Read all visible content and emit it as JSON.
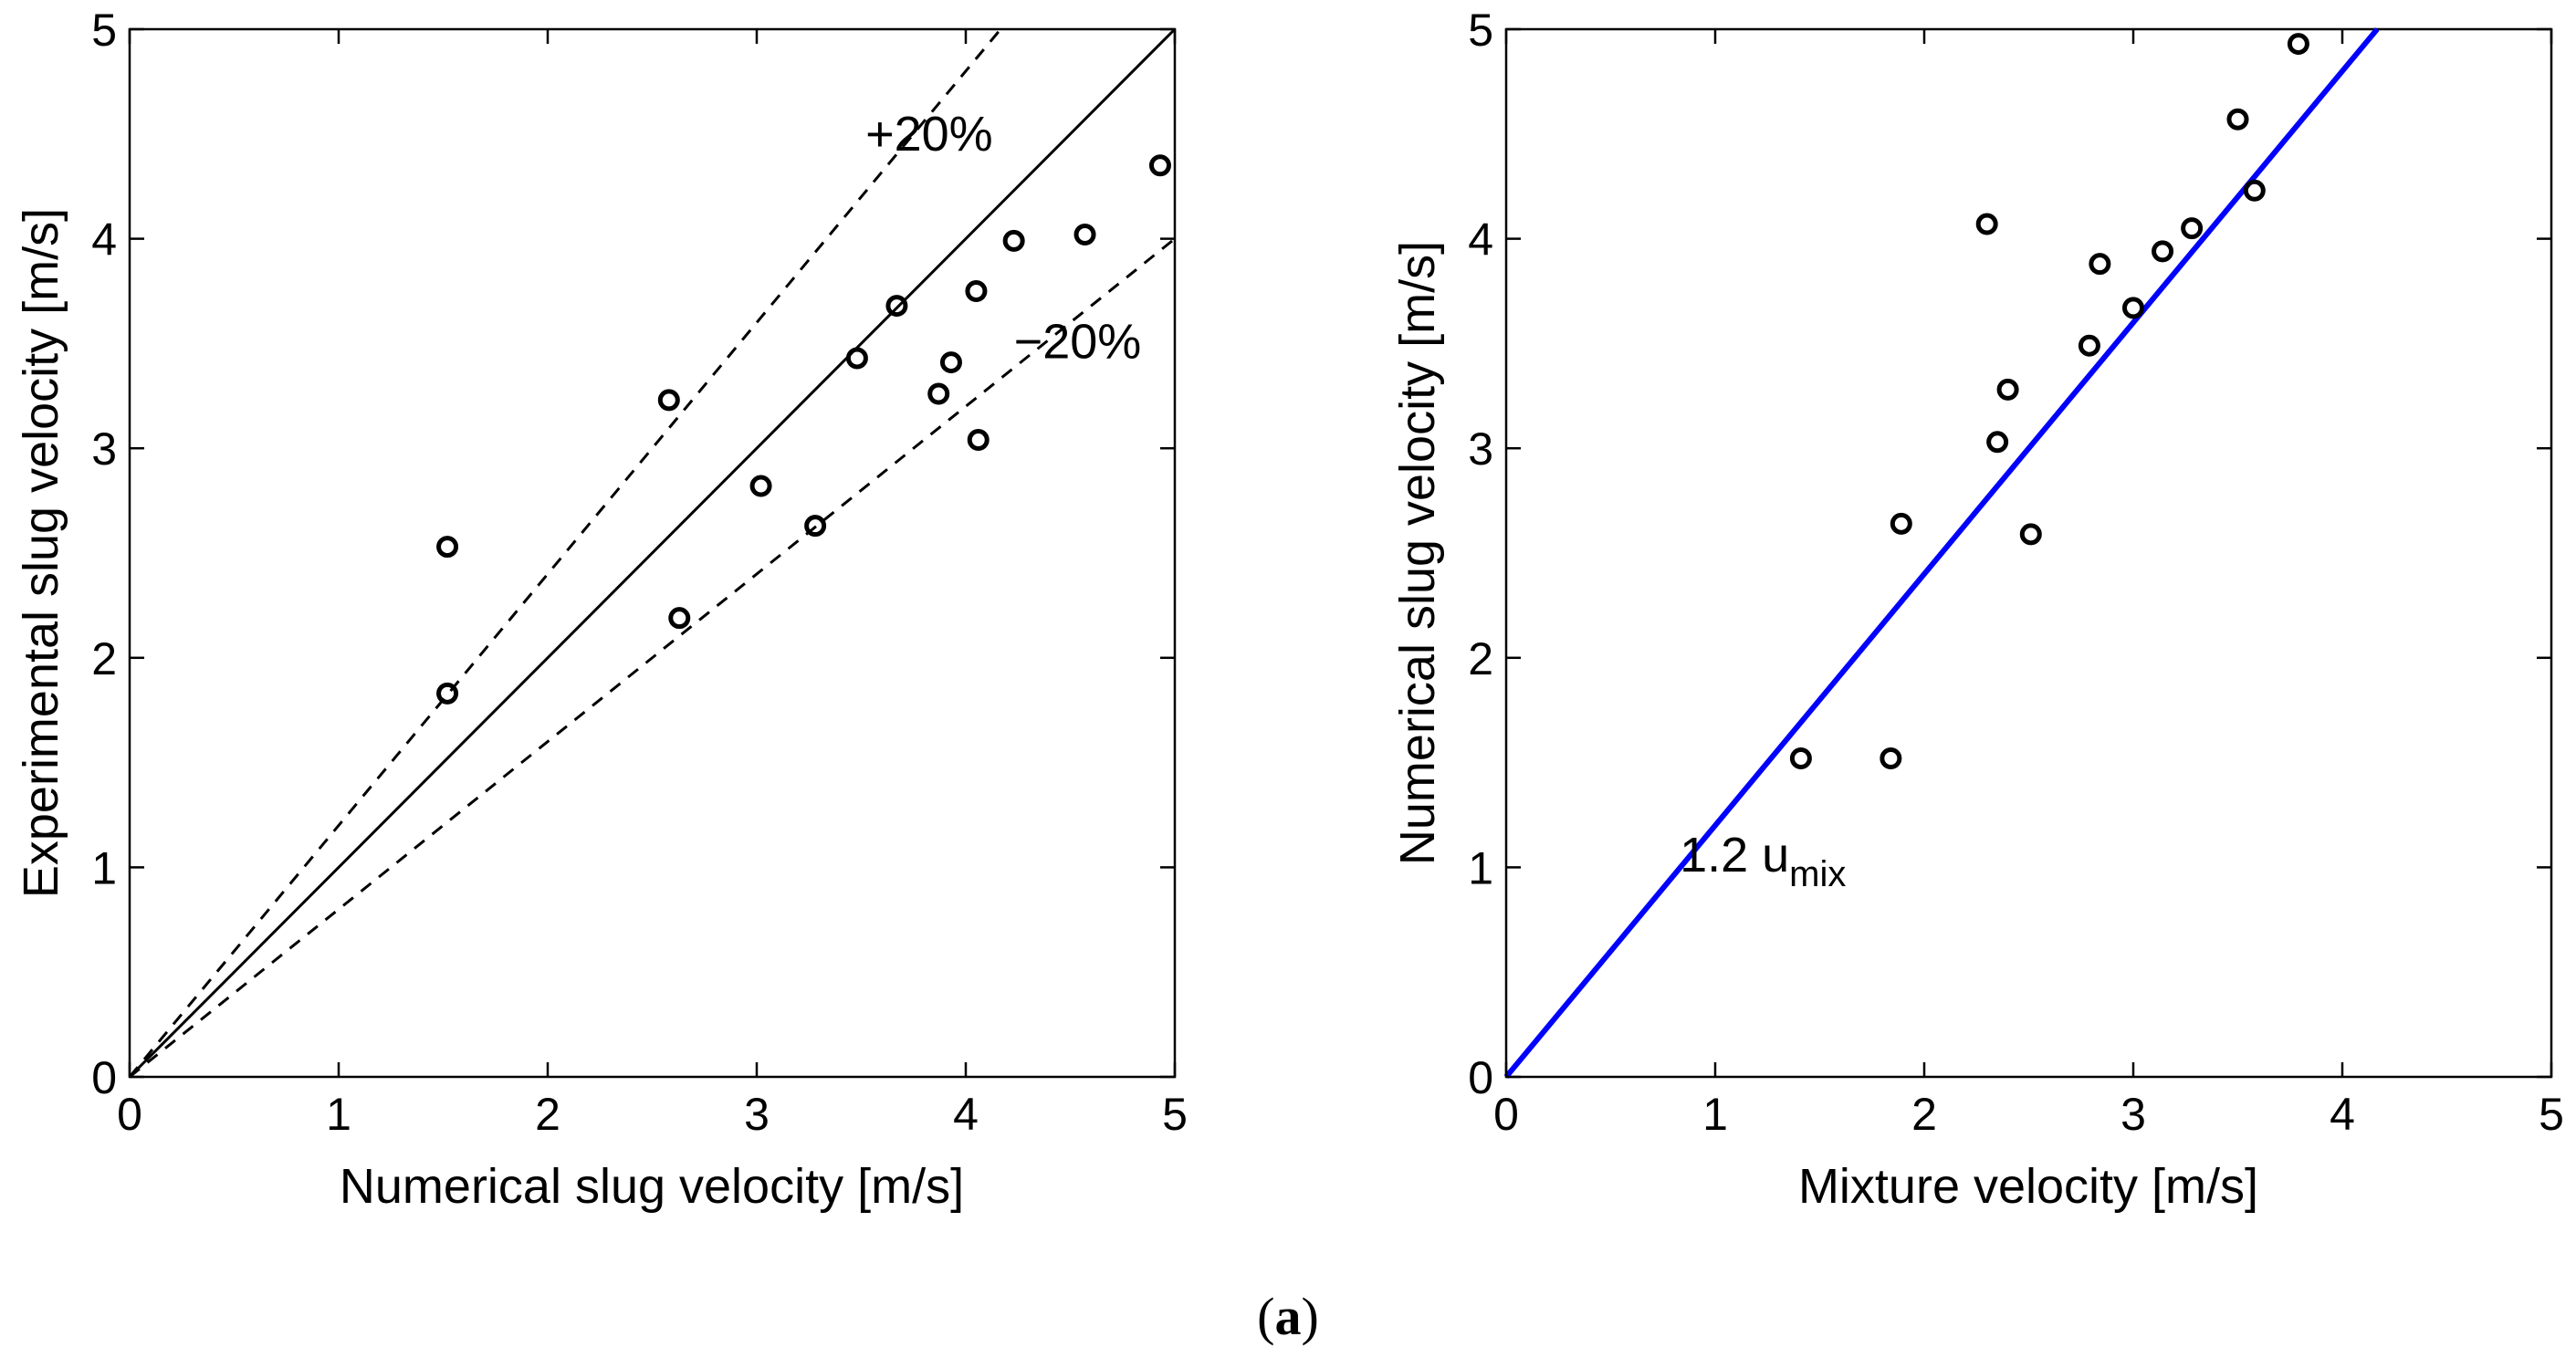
{
  "figure": {
    "caption_paren_open": "(",
    "caption_letter": "a",
    "caption_paren_close": ")"
  },
  "chart_data": [
    {
      "type": "scatter",
      "title": "",
      "xlabel": "Numerical slug velocity [m/s]",
      "ylabel": "Experimental slug velocity [m/s]",
      "xlim": [
        0,
        5
      ],
      "ylim": [
        0,
        5
      ],
      "xticks": [
        "0",
        "1",
        "2",
        "3",
        "4",
        "5"
      ],
      "yticks": [
        "0",
        "1",
        "2",
        "3",
        "4",
        "5"
      ],
      "grid": false,
      "points": [
        {
          "x": 1.52,
          "y": 2.53
        },
        {
          "x": 1.52,
          "y": 1.83
        },
        {
          "x": 2.58,
          "y": 3.23
        },
        {
          "x": 2.63,
          "y": 2.19
        },
        {
          "x": 3.02,
          "y": 2.82
        },
        {
          "x": 3.28,
          "y": 2.63
        },
        {
          "x": 3.48,
          "y": 3.43
        },
        {
          "x": 3.67,
          "y": 3.68
        },
        {
          "x": 3.87,
          "y": 3.26
        },
        {
          "x": 3.93,
          "y": 3.41
        },
        {
          "x": 4.05,
          "y": 3.75
        },
        {
          "x": 4.06,
          "y": 3.04
        },
        {
          "x": 4.23,
          "y": 3.99
        },
        {
          "x": 4.57,
          "y": 4.02
        },
        {
          "x": 4.93,
          "y": 4.35
        }
      ],
      "lines": [
        {
          "name": "y = x",
          "slope": 1.0,
          "style": "solid",
          "color": "#000000"
        },
        {
          "name": "+20%",
          "slope": 1.2,
          "style": "dashed",
          "color": "#000000"
        },
        {
          "name": "-20%",
          "slope": 0.8,
          "style": "dashed",
          "color": "#000000"
        }
      ],
      "annotations": [
        {
          "text": "+20%",
          "x": 3.52,
          "y": 4.42
        },
        {
          "text": "−20%",
          "x": 4.23,
          "y": 3.43
        }
      ]
    },
    {
      "type": "scatter",
      "title": "",
      "xlabel": "Mixture velocity [m/s]",
      "ylabel": "Numerical slug velocity [m/s]",
      "xlim": [
        0,
        5
      ],
      "ylim": [
        0,
        5
      ],
      "xticks": [
        "0",
        "1",
        "2",
        "3",
        "4",
        "5"
      ],
      "yticks": [
        "0",
        "1",
        "2",
        "3",
        "4",
        "5"
      ],
      "grid": false,
      "points": [
        {
          "x": 1.41,
          "y": 1.52
        },
        {
          "x": 1.84,
          "y": 1.52
        },
        {
          "x": 1.89,
          "y": 2.64
        },
        {
          "x": 2.3,
          "y": 4.07
        },
        {
          "x": 2.35,
          "y": 3.03
        },
        {
          "x": 2.4,
          "y": 3.28
        },
        {
          "x": 2.51,
          "y": 2.59
        },
        {
          "x": 2.79,
          "y": 3.49
        },
        {
          "x": 2.84,
          "y": 3.88
        },
        {
          "x": 3.0,
          "y": 3.67
        },
        {
          "x": 3.14,
          "y": 3.94
        },
        {
          "x": 3.28,
          "y": 4.05
        },
        {
          "x": 3.5,
          "y": 4.57
        },
        {
          "x": 3.58,
          "y": 4.23
        },
        {
          "x": 3.79,
          "y": 4.93
        }
      ],
      "lines": [
        {
          "name": "1.2 u_mix",
          "slope": 1.2,
          "style": "solid",
          "color": "#0000ff"
        }
      ],
      "annotations": [
        {
          "text": "1.2 u",
          "sub": "mix",
          "x": 0.83,
          "y": 0.98
        }
      ]
    }
  ]
}
